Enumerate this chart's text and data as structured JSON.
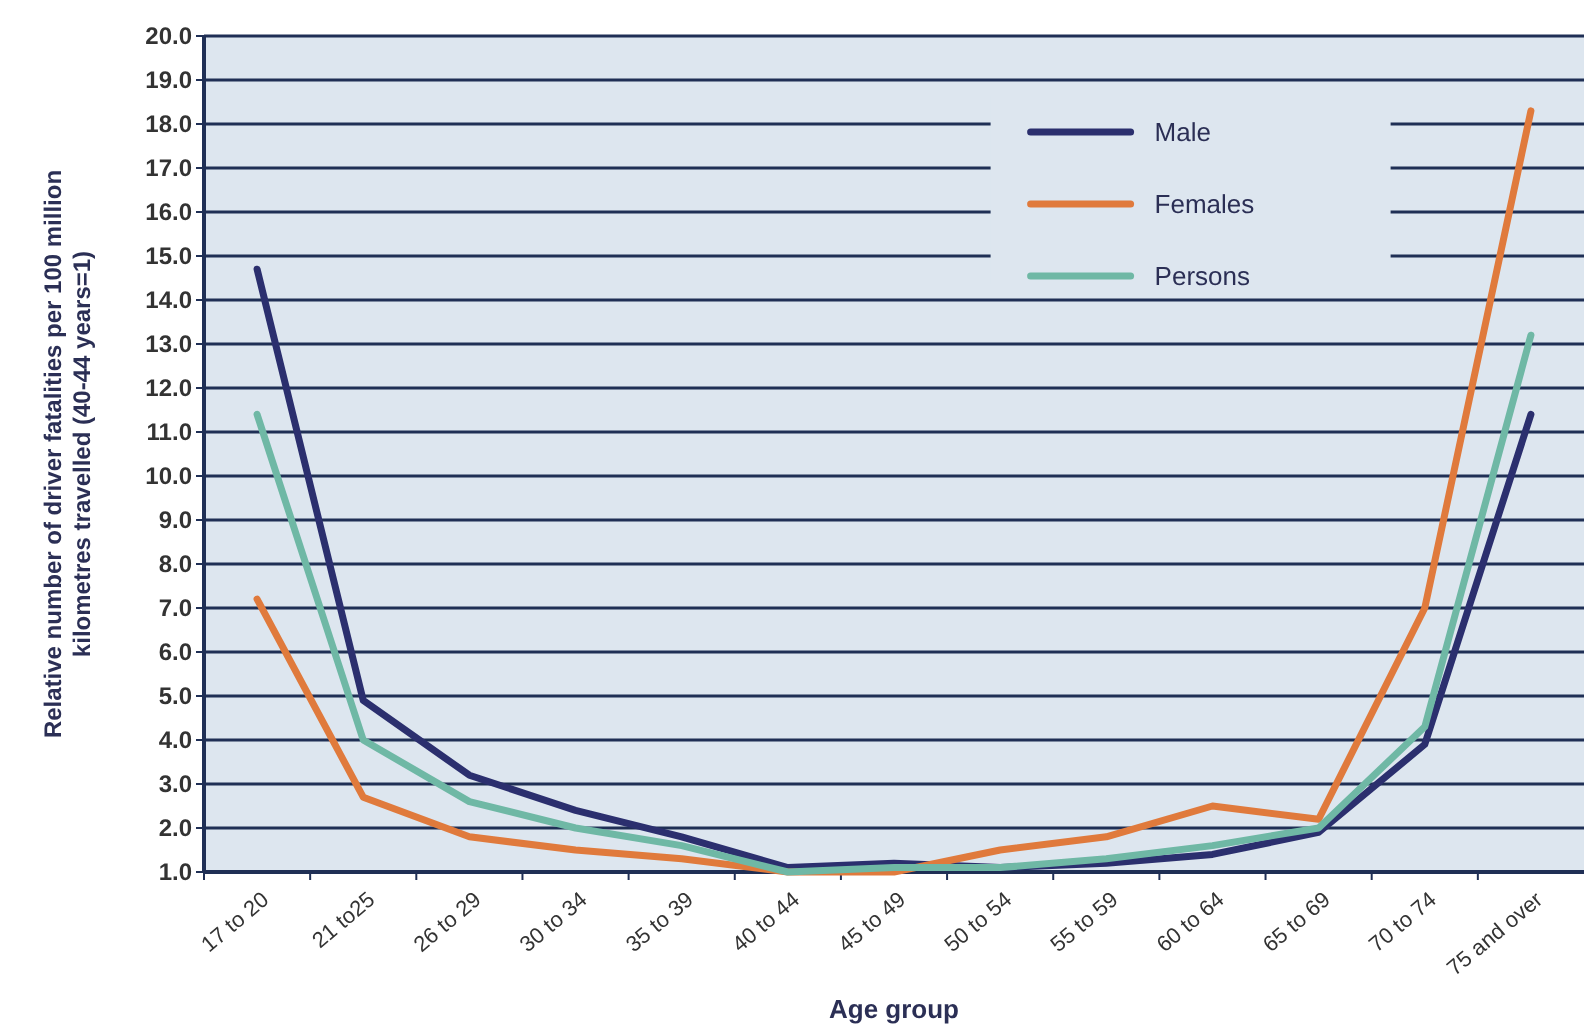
{
  "chart_data": {
    "type": "line",
    "xlabel": "Age group",
    "ylabel": "Relative number of driver fatalities per 100 million kilometres travelled (40-44 years=1)",
    "categories": [
      "17 to 20",
      "21 to25",
      "26 to 29",
      "30 to 34",
      "35 to 39",
      "40 to 44",
      "45 to 49",
      "50 to 54",
      "55 to 59",
      "60 to 64",
      "65 to 69",
      "70 to 74",
      "75 and over"
    ],
    "series": [
      {
        "name": "Male",
        "color": "#2b2f6e",
        "values": [
          14.7,
          4.9,
          3.2,
          2.4,
          1.8,
          1.1,
          1.2,
          1.1,
          1.2,
          1.4,
          1.9,
          3.9,
          11.4
        ]
      },
      {
        "name": "Females",
        "color": "#e07a3c",
        "values": [
          7.2,
          2.7,
          1.8,
          1.5,
          1.3,
          1.0,
          1.0,
          1.5,
          1.8,
          2.5,
          2.2,
          7.0,
          18.3
        ]
      },
      {
        "name": "Persons",
        "color": "#6fb8a5",
        "values": [
          11.4,
          4.0,
          2.6,
          2.0,
          1.6,
          1.0,
          1.1,
          1.1,
          1.3,
          1.6,
          2.0,
          4.3,
          13.2
        ]
      }
    ],
    "ylim": [
      1,
      20
    ],
    "yticks": [
      {
        "value": 1,
        "label": "1.0"
      },
      {
        "value": 2,
        "label": "2.0"
      },
      {
        "value": 3,
        "label": "3.0"
      },
      {
        "value": 4,
        "label": "4.0"
      },
      {
        "value": 5,
        "label": "5.0"
      },
      {
        "value": 6,
        "label": "6.0"
      },
      {
        "value": 7,
        "label": "7.0"
      },
      {
        "value": 8,
        "label": "8.0"
      },
      {
        "value": 9,
        "label": "9.0"
      },
      {
        "value": 10,
        "label": "10.0"
      },
      {
        "value": 11,
        "label": "11.0"
      },
      {
        "value": 12,
        "label": "12.0"
      },
      {
        "value": 13,
        "label": "13.0"
      },
      {
        "value": 14,
        "label": "14.0"
      },
      {
        "value": 15,
        "label": "15.0"
      },
      {
        "value": 16,
        "label": "16.0"
      },
      {
        "value": 17,
        "label": "17.0"
      },
      {
        "value": 18,
        "label": "18.0"
      },
      {
        "value": 19,
        "label": "19.0"
      },
      {
        "value": 20,
        "label": "20.0"
      }
    ],
    "grid": "y",
    "legend": "top right",
    "marker": "none",
    "line_style": "solid"
  }
}
